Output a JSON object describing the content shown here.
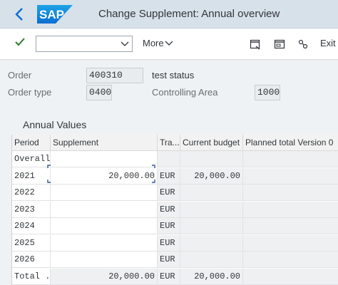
{
  "header": {
    "title": "Change Supplement: Annual overview"
  },
  "logo": {
    "text": "SAP"
  },
  "toolbar": {
    "command_value": "",
    "more_label": "More",
    "exit_label": "Exit"
  },
  "fields": {
    "order_label": "Order",
    "order_value": "400310",
    "order_status": "test status",
    "order_type_label": "Order type",
    "order_type_value": "0400",
    "controlling_area_label": "Controlling Area",
    "controlling_area_value": "1000"
  },
  "annual": {
    "title": "Annual Values",
    "columns": [
      "Period",
      "Supplement",
      "Tra...",
      "Current budget",
      "Planned total Version 0"
    ],
    "rows": [
      {
        "period": "Overall",
        "supplement": "",
        "currency": "",
        "budget": "",
        "planned": ""
      },
      {
        "period": "2021",
        "supplement": "20,000.00",
        "currency": "EUR",
        "budget": "20,000.00",
        "planned": ""
      },
      {
        "period": "2022",
        "supplement": "",
        "currency": "EUR",
        "budget": "",
        "planned": ""
      },
      {
        "period": "2023",
        "supplement": "",
        "currency": "EUR",
        "budget": "",
        "planned": ""
      },
      {
        "period": "2024",
        "supplement": "",
        "currency": "EUR",
        "budget": "",
        "planned": ""
      },
      {
        "period": "2025",
        "supplement": "",
        "currency": "EUR",
        "budget": "",
        "planned": ""
      },
      {
        "period": "2026",
        "supplement": "",
        "currency": "EUR",
        "budget": "",
        "planned": ""
      },
      {
        "period": "Total ...",
        "supplement": "20,000.00",
        "currency": "EUR",
        "budget": "20,000.00",
        "planned": ""
      }
    ]
  },
  "colors": {
    "titlebar": "#d7e1ea",
    "accent": "#0a6ed1",
    "check": "#2b7c2b"
  }
}
